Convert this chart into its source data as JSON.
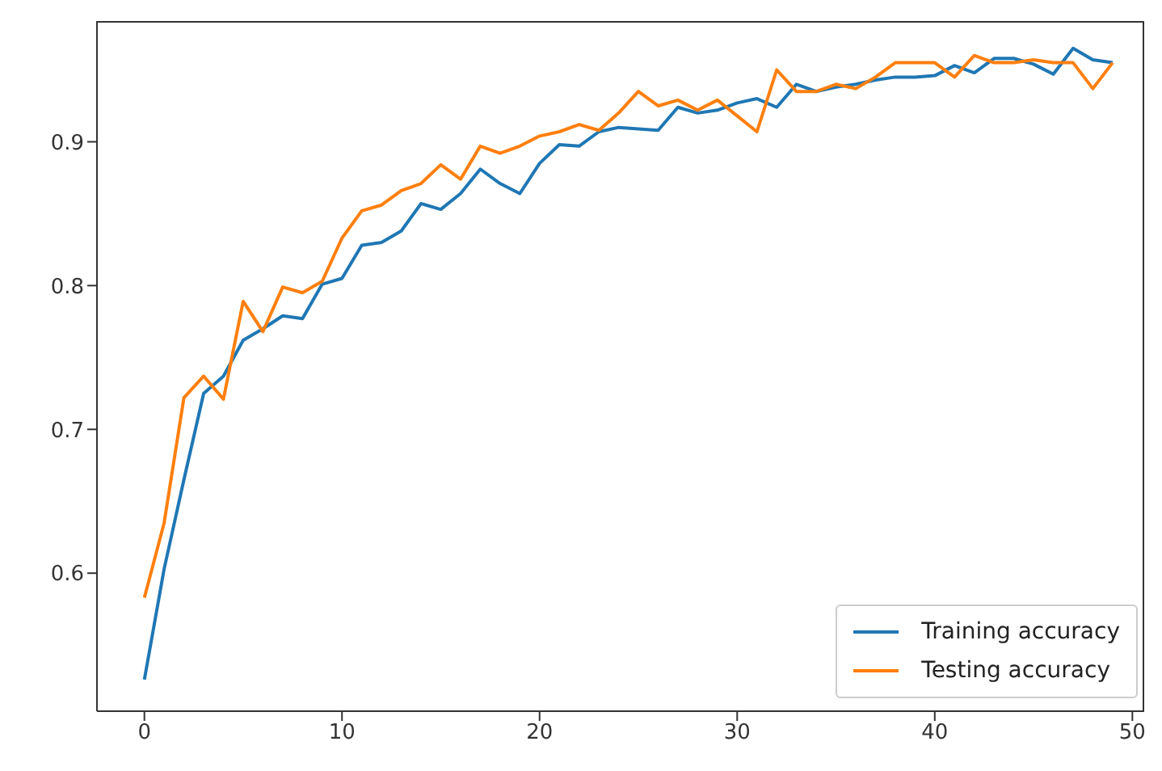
{
  "chart_data": {
    "type": "line",
    "x": [
      0,
      1,
      2,
      3,
      4,
      5,
      6,
      7,
      8,
      9,
      10,
      11,
      12,
      13,
      14,
      15,
      16,
      17,
      18,
      19,
      20,
      21,
      22,
      23,
      24,
      25,
      26,
      27,
      28,
      29,
      30,
      31,
      32,
      33,
      34,
      35,
      36,
      37,
      38,
      39,
      40,
      41,
      42,
      43,
      44,
      45,
      46,
      47,
      48,
      49
    ],
    "series": [
      {
        "name": "Training accuracy",
        "color": "#1f77b4",
        "values": [
          0.526,
          0.603,
          0.665,
          0.725,
          0.737,
          0.762,
          0.77,
          0.779,
          0.777,
          0.801,
          0.805,
          0.828,
          0.83,
          0.838,
          0.857,
          0.853,
          0.864,
          0.881,
          0.871,
          0.864,
          0.885,
          0.898,
          0.897,
          0.907,
          0.91,
          0.909,
          0.908,
          0.924,
          0.92,
          0.922,
          0.927,
          0.93,
          0.924,
          0.94,
          0.935,
          0.938,
          0.94,
          0.943,
          0.945,
          0.945,
          0.946,
          0.953,
          0.948,
          0.958,
          0.958,
          0.954,
          0.947,
          0.965,
          0.957,
          0.955
        ]
      },
      {
        "name": "Testing accuracy",
        "color": "#ff7f0e",
        "values": [
          0.583,
          0.635,
          0.722,
          0.737,
          0.721,
          0.789,
          0.768,
          0.799,
          0.795,
          0.803,
          0.833,
          0.852,
          0.856,
          0.866,
          0.871,
          0.884,
          0.874,
          0.897,
          0.892,
          0.897,
          0.904,
          0.907,
          0.912,
          0.908,
          0.92,
          0.935,
          0.925,
          0.929,
          0.922,
          0.929,
          0.918,
          0.907,
          0.95,
          0.935,
          0.935,
          0.94,
          0.937,
          0.945,
          0.955,
          0.955,
          0.955,
          0.945,
          0.96,
          0.955,
          0.955,
          0.957,
          0.955,
          0.955,
          0.937,
          0.955
        ]
      }
    ],
    "xlim": [
      -2.4,
      50.6
    ],
    "xticks": [
      0,
      10,
      20,
      30,
      40,
      50
    ],
    "ylim": [
      0.504,
      0.984
    ],
    "yticks": [
      0.6,
      0.7,
      0.8,
      0.9
    ],
    "grid": false,
    "legend": "bottom right",
    "marker": "none",
    "line_style": "solid"
  }
}
